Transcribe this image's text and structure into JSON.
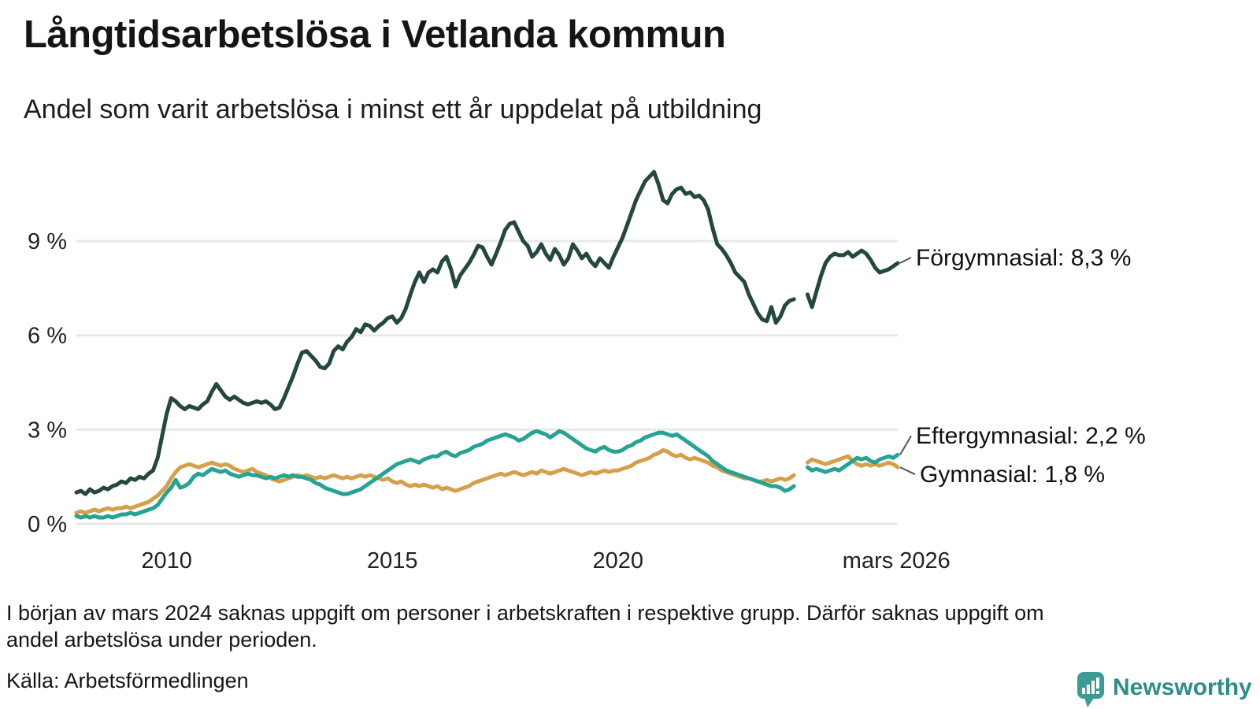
{
  "footnote": {
    "line1": "I början av mars 2024 saknas uppgift om personer i arbetskraften i respektive grupp. Därför saknas uppgift om",
    "line2": "andel arbetslösa under perioden."
  },
  "source": "Källa: Arbetsförmedlingen",
  "logo_text": "Newsworthy",
  "colors": {
    "grid": "#e8e8eb",
    "tick_text": "#222222",
    "label_text": "#111111",
    "connector": "#555555",
    "logo_icon": "#3b9c95",
    "logo_text": "#2d8e88"
  },
  "chart_data": {
    "type": "line",
    "title": "Långtidsarbetslösa i Vetlanda kommun",
    "subtitle": "Andel som varit arbetslösa i minst ett år uppdelat på utbildning",
    "unit": "%",
    "grid": true,
    "legend_position": "right-of-line-ends",
    "xlim": [
      2008.0,
      2026.2
    ],
    "ylim": [
      0,
      11.5
    ],
    "t0": 2008.0,
    "dt": 0.1,
    "x_ticks": [
      {
        "t": 2010,
        "label": "2010"
      },
      {
        "t": 2015,
        "label": "2015"
      },
      {
        "t": 2020,
        "label": "2020"
      },
      {
        "t": 2026.17,
        "label": "mars 2026"
      }
    ],
    "y_ticks": [
      {
        "v": 0,
        "label": "0 %"
      },
      {
        "v": 3,
        "label": "3 %"
      },
      {
        "v": 6,
        "label": "6 %"
      },
      {
        "v": 9,
        "label": "9 %"
      }
    ],
    "gap_note": "values are null where data is missing (early March 2024)",
    "series": [
      {
        "id": "forgymnasial",
        "name": "Förgymnasial",
        "label": "Förgymnasial: 8,3 %",
        "end_value": 8.3,
        "color": "#24483f",
        "values": [
          1.0,
          1.05,
          0.95,
          1.1,
          1.0,
          1.05,
          1.15,
          1.1,
          1.2,
          1.25,
          1.35,
          1.3,
          1.45,
          1.4,
          1.5,
          1.45,
          1.6,
          1.7,
          2.1,
          2.8,
          3.5,
          4.0,
          3.9,
          3.75,
          3.65,
          3.75,
          3.7,
          3.65,
          3.8,
          3.9,
          4.2,
          4.45,
          4.25,
          4.05,
          3.95,
          4.05,
          3.95,
          3.85,
          3.8,
          3.85,
          3.9,
          3.85,
          3.9,
          3.8,
          3.65,
          3.7,
          4.0,
          4.35,
          4.7,
          5.1,
          5.45,
          5.5,
          5.35,
          5.2,
          5.0,
          4.95,
          5.1,
          5.5,
          5.65,
          5.55,
          5.8,
          5.95,
          6.2,
          6.1,
          6.35,
          6.3,
          6.15,
          6.3,
          6.4,
          6.55,
          6.6,
          6.4,
          6.55,
          6.85,
          7.3,
          7.7,
          8.0,
          7.7,
          8.0,
          8.1,
          8.0,
          8.35,
          8.5,
          8.1,
          7.55,
          7.9,
          8.1,
          8.3,
          8.55,
          8.85,
          8.8,
          8.5,
          8.25,
          8.6,
          8.95,
          9.35,
          9.55,
          9.6,
          9.3,
          9.0,
          8.85,
          8.5,
          8.65,
          8.9,
          8.6,
          8.4,
          8.75,
          8.55,
          8.25,
          8.45,
          8.9,
          8.7,
          8.45,
          8.6,
          8.35,
          8.2,
          8.45,
          8.3,
          8.15,
          8.5,
          8.8,
          9.1,
          9.5,
          9.9,
          10.3,
          10.6,
          10.9,
          11.05,
          11.2,
          10.8,
          10.3,
          10.2,
          10.5,
          10.65,
          10.7,
          10.5,
          10.55,
          10.4,
          10.45,
          10.3,
          10.0,
          9.4,
          8.9,
          8.75,
          8.55,
          8.3,
          8.0,
          7.85,
          7.7,
          7.3,
          7.0,
          6.7,
          6.5,
          6.45,
          6.9,
          6.4,
          6.6,
          6.95,
          7.1,
          7.15,
          null,
          null,
          7.3,
          6.9,
          7.4,
          7.9,
          8.3,
          8.5,
          8.6,
          8.55,
          8.55,
          8.65,
          8.5,
          8.6,
          8.7,
          8.6,
          8.4,
          8.15,
          8.0,
          8.05,
          8.1,
          8.2,
          8.3
        ]
      },
      {
        "id": "eftergymnasial",
        "name": "Eftergymnasial",
        "label": "Eftergymnasial: 2,2 %",
        "end_value": 2.2,
        "color": "#26a392",
        "values": [
          0.25,
          0.2,
          0.25,
          0.2,
          0.25,
          0.2,
          0.2,
          0.25,
          0.2,
          0.25,
          0.3,
          0.3,
          0.35,
          0.3,
          0.35,
          0.4,
          0.45,
          0.5,
          0.6,
          0.8,
          1.0,
          1.15,
          1.4,
          1.15,
          1.2,
          1.3,
          1.5,
          1.6,
          1.55,
          1.65,
          1.75,
          1.7,
          1.65,
          1.7,
          1.6,
          1.55,
          1.5,
          1.55,
          1.6,
          1.55,
          1.55,
          1.5,
          1.45,
          1.5,
          1.45,
          1.5,
          1.55,
          1.5,
          1.55,
          1.5,
          1.5,
          1.45,
          1.4,
          1.3,
          1.25,
          1.15,
          1.1,
          1.05,
          1.0,
          0.95,
          0.95,
          1.0,
          1.05,
          1.1,
          1.2,
          1.3,
          1.4,
          1.5,
          1.6,
          1.7,
          1.8,
          1.9,
          1.95,
          2.0,
          2.05,
          2.0,
          1.95,
          2.05,
          2.1,
          2.15,
          2.15,
          2.25,
          2.3,
          2.2,
          2.15,
          2.25,
          2.3,
          2.35,
          2.45,
          2.5,
          2.55,
          2.65,
          2.7,
          2.75,
          2.8,
          2.85,
          2.8,
          2.75,
          2.65,
          2.7,
          2.8,
          2.9,
          2.95,
          2.9,
          2.85,
          2.75,
          2.85,
          2.95,
          2.9,
          2.8,
          2.7,
          2.6,
          2.5,
          2.4,
          2.35,
          2.3,
          2.4,
          2.45,
          2.35,
          2.3,
          2.3,
          2.35,
          2.45,
          2.5,
          2.6,
          2.65,
          2.75,
          2.8,
          2.85,
          2.9,
          2.9,
          2.85,
          2.8,
          2.85,
          2.75,
          2.65,
          2.55,
          2.45,
          2.35,
          2.25,
          2.15,
          2.0,
          1.9,
          1.8,
          1.7,
          1.65,
          1.6,
          1.55,
          1.5,
          1.45,
          1.4,
          1.35,
          1.3,
          1.25,
          1.2,
          1.2,
          1.15,
          1.05,
          1.1,
          1.2,
          null,
          null,
          1.8,
          1.7,
          1.75,
          1.7,
          1.65,
          1.7,
          1.75,
          1.7,
          1.8,
          1.9,
          2.0,
          2.1,
          2.05,
          2.1,
          2.0,
          1.95,
          2.05,
          2.1,
          2.15,
          2.1,
          2.2
        ]
      },
      {
        "id": "gymnasial",
        "name": "Gymnasial",
        "label": "Gymnasial: 1,8 %",
        "end_value": 1.8,
        "color": "#d5a04b",
        "values": [
          0.35,
          0.4,
          0.35,
          0.4,
          0.45,
          0.4,
          0.45,
          0.5,
          0.45,
          0.5,
          0.5,
          0.55,
          0.5,
          0.55,
          0.6,
          0.65,
          0.7,
          0.8,
          0.9,
          1.05,
          1.2,
          1.45,
          1.65,
          1.8,
          1.85,
          1.9,
          1.85,
          1.8,
          1.85,
          1.9,
          1.95,
          1.9,
          1.85,
          1.9,
          1.85,
          1.75,
          1.7,
          1.65,
          1.7,
          1.75,
          1.65,
          1.6,
          1.55,
          1.45,
          1.4,
          1.35,
          1.4,
          1.45,
          1.5,
          1.55,
          1.5,
          1.55,
          1.5,
          1.45,
          1.5,
          1.45,
          1.5,
          1.55,
          1.5,
          1.45,
          1.5,
          1.45,
          1.5,
          1.55,
          1.5,
          1.55,
          1.5,
          1.45,
          1.4,
          1.45,
          1.35,
          1.3,
          1.35,
          1.25,
          1.2,
          1.25,
          1.2,
          1.25,
          1.2,
          1.15,
          1.2,
          1.1,
          1.15,
          1.1,
          1.05,
          1.1,
          1.15,
          1.2,
          1.3,
          1.35,
          1.4,
          1.45,
          1.5,
          1.55,
          1.6,
          1.55,
          1.6,
          1.65,
          1.6,
          1.55,
          1.6,
          1.65,
          1.6,
          1.7,
          1.65,
          1.6,
          1.65,
          1.7,
          1.75,
          1.7,
          1.65,
          1.6,
          1.55,
          1.6,
          1.65,
          1.6,
          1.65,
          1.7,
          1.65,
          1.7,
          1.7,
          1.75,
          1.8,
          1.85,
          1.95,
          2.0,
          2.05,
          2.1,
          2.2,
          2.25,
          2.35,
          2.3,
          2.2,
          2.15,
          2.2,
          2.1,
          2.05,
          2.1,
          2.05,
          2.0,
          1.95,
          1.85,
          1.8,
          1.7,
          1.65,
          1.6,
          1.55,
          1.5,
          1.45,
          1.45,
          1.4,
          1.35,
          1.35,
          1.4,
          1.35,
          1.4,
          1.45,
          1.4,
          1.45,
          1.55,
          null,
          null,
          1.95,
          2.05,
          2.0,
          1.95,
          1.9,
          1.95,
          2.0,
          2.05,
          2.1,
          2.15,
          2.0,
          1.9,
          1.85,
          1.9,
          1.85,
          1.9,
          1.85,
          1.9,
          1.95,
          1.9,
          1.8
        ]
      }
    ]
  }
}
